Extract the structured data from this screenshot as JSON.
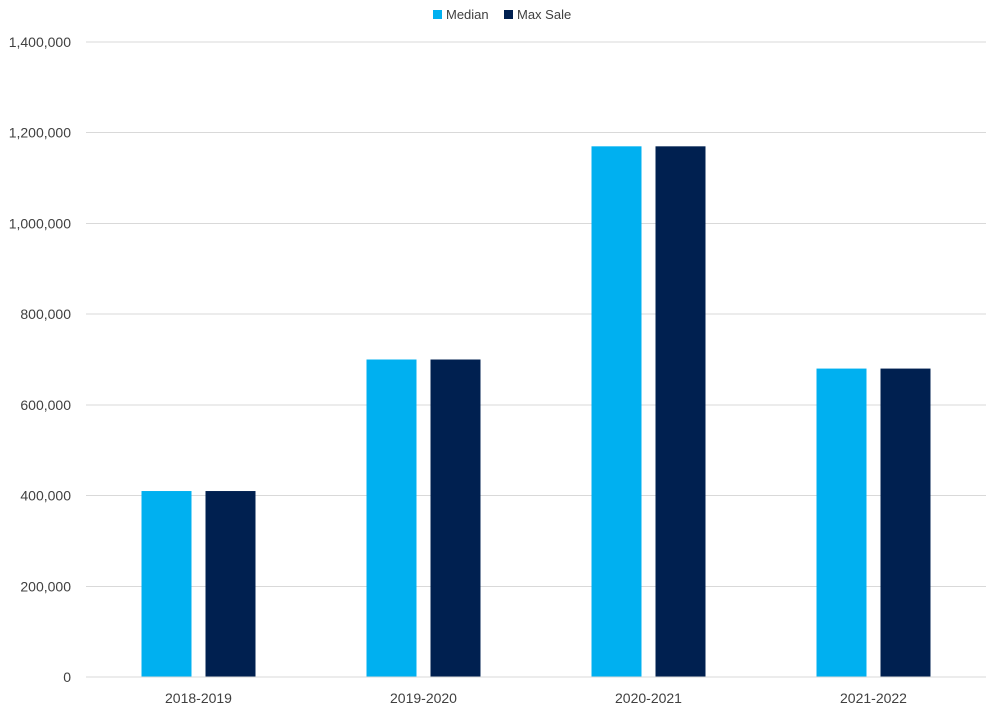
{
  "chart_data": {
    "type": "bar",
    "categories": [
      "2018-2019",
      "2019-2020",
      "2020-2021",
      "2021-2022"
    ],
    "series": [
      {
        "name": "Median",
        "color": "#00B0F0",
        "values": [
          410000,
          700000,
          1170000,
          680000
        ]
      },
      {
        "name": "Max Sale",
        "color": "#002050",
        "values": [
          410000,
          700000,
          1170000,
          680000
        ]
      }
    ],
    "ylim": [
      0,
      1400000
    ],
    "yticks": [
      {
        "value": 0,
        "label": "0"
      },
      {
        "value": 200000,
        "label": "200,000"
      },
      {
        "value": 400000,
        "label": "400,000"
      },
      {
        "value": 600000,
        "label": "600,000"
      },
      {
        "value": 800000,
        "label": "800,000"
      },
      {
        "value": 1000000,
        "label": "1,000,000"
      },
      {
        "value": 1200000,
        "label": "1,200,000"
      },
      {
        "value": 1400000,
        "label": "1,400,000"
      }
    ],
    "grid": true,
    "gridline_color": "#d9d9d9",
    "legend": "top-center"
  }
}
